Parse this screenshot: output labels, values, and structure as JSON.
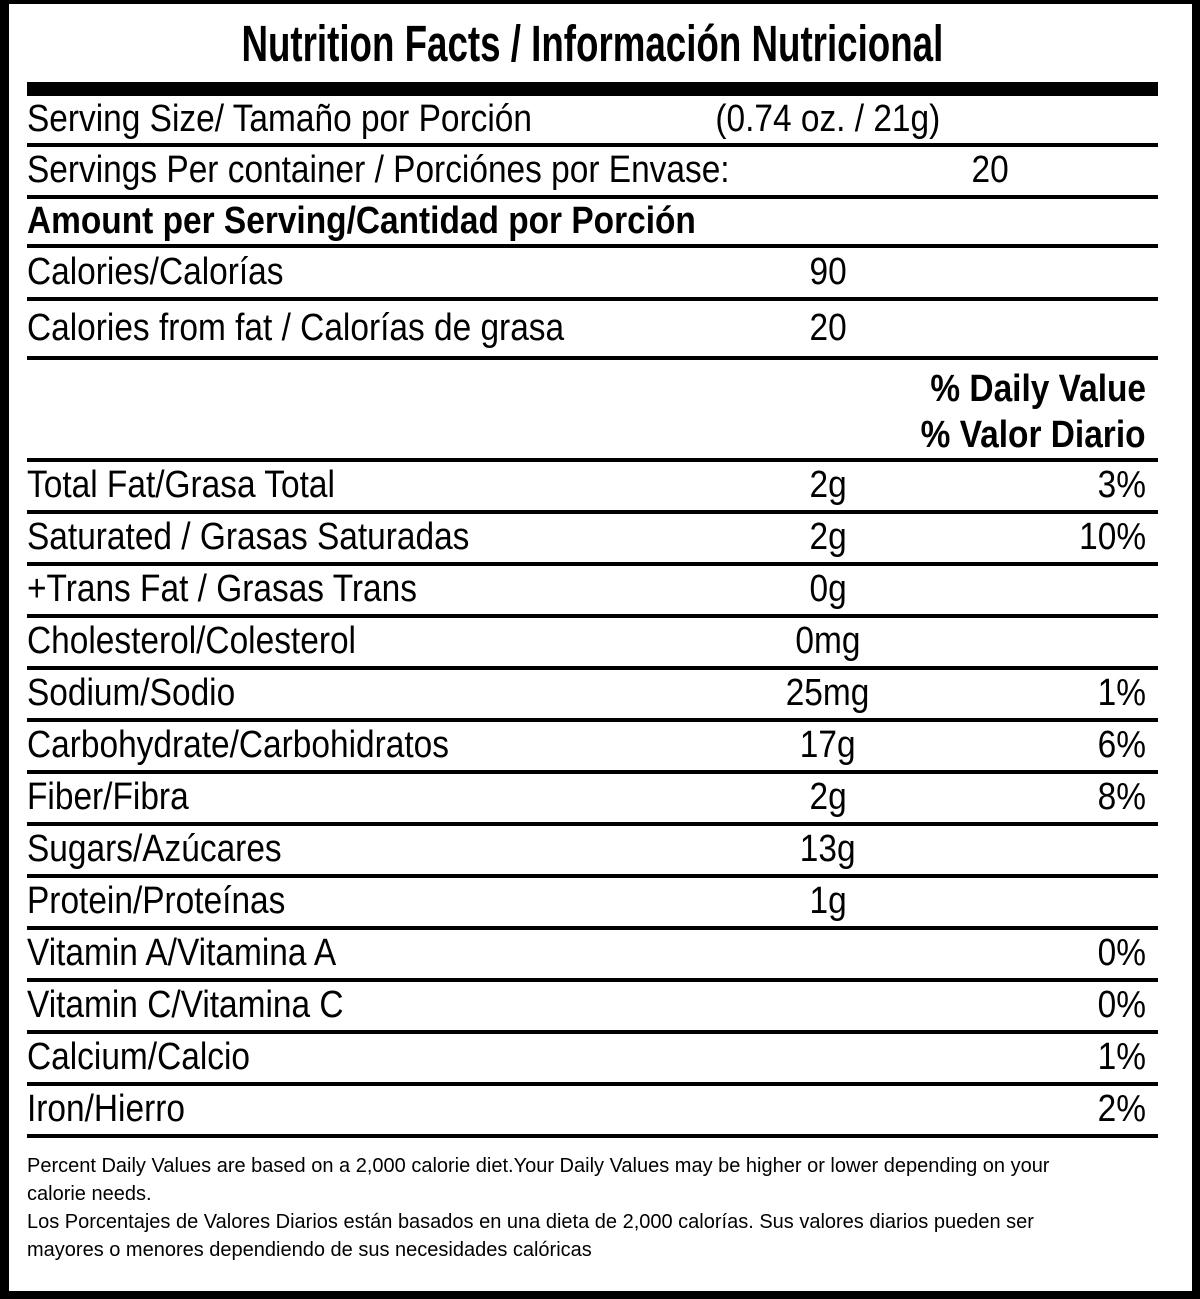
{
  "label": {
    "title": "Nutrition Facts / Información Nutricional",
    "serving": {
      "size_label": "Serving Size/ Tamaño por Porción",
      "size_value": "(0.74 oz. / 21g)",
      "per_container_label": "Servings Per container / Porciónes por Envase:",
      "per_container_value": "20"
    },
    "amount_header": "Amount per Serving/Cantidad por Porción",
    "calories": {
      "label": "Calories/Calorías",
      "value": "90"
    },
    "calories_from_fat": {
      "label": "Calories from fat / Calorías de grasa",
      "value": "20"
    },
    "daily_value_header": {
      "line1": "% Daily Value",
      "line2": "% Valor Diario"
    },
    "nutrients": [
      {
        "label": "Total Fat/Grasa Total",
        "amount": "2g",
        "dv": "3%"
      },
      {
        "label": "Saturated / Grasas Saturadas",
        "amount": "2g",
        "dv": "10%"
      },
      {
        "label": "+Trans Fat / Grasas Trans",
        "amount": "0g",
        "dv": ""
      },
      {
        "label": "Cholesterol/Colesterol",
        "amount": "0mg",
        "dv": ""
      },
      {
        "label": "Sodium/Sodio",
        "amount": "25mg",
        "dv": "1%"
      },
      {
        "label": "Carbohydrate/Carbohidratos",
        "amount": "17g",
        "dv": "6%"
      },
      {
        "label": "Fiber/Fibra",
        "amount": "2g",
        "dv": "8%"
      },
      {
        "label": "Sugars/Azúcares",
        "amount": "13g",
        "dv": ""
      },
      {
        "label": "Protein/Proteínas",
        "amount": "1g",
        "dv": ""
      },
      {
        "label": "Vitamin A/Vitamina A",
        "amount": "",
        "dv": "0%"
      },
      {
        "label": "Vitamin C/Vitamina C",
        "amount": "",
        "dv": "0%"
      },
      {
        "label": "Calcium/Calcio",
        "amount": "",
        "dv": "1%"
      },
      {
        "label": "Iron/Hierro",
        "amount": "",
        "dv": "2%"
      }
    ],
    "footnote_lines": [
      "Percent Daily Values are based on a 2,000 calorie diet.Your Daily Values may be higher or lower depending on your",
      "calorie needs.",
      "Los Porcentajes de Valores Diarios están basados en una dieta de 2,000 calorías. Sus valores diarios pueden ser",
      "mayores o menores dependiendo de sus necesidades calóricas"
    ]
  },
  "colors": {
    "text": "#000000",
    "background": "#ffffff",
    "divider": "#000000"
  }
}
